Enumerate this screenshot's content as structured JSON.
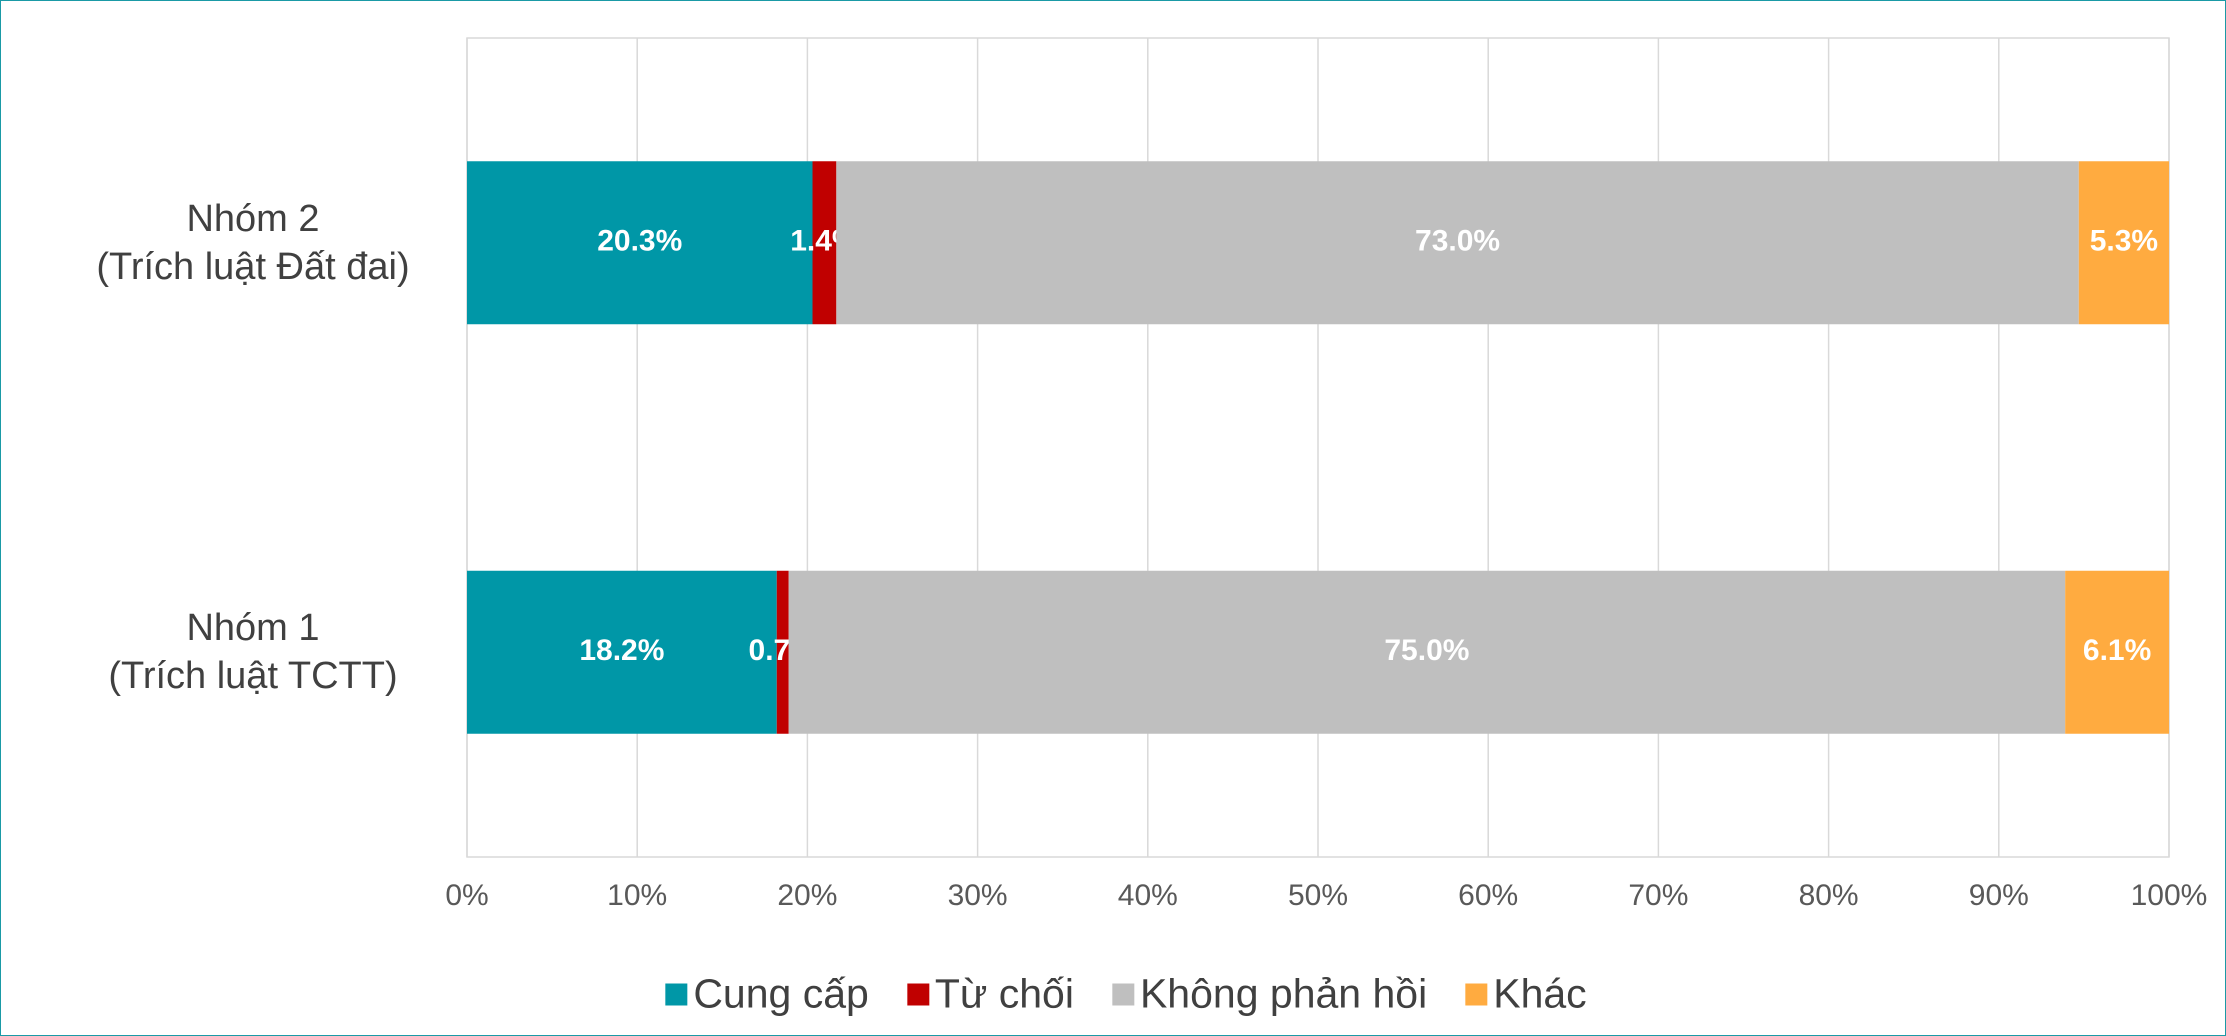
{
  "chart_data": {
    "type": "stacked_barh",
    "categories": [
      "Nhóm 2\n(Trích luật Đất đai)",
      "Nhóm 1\n(Trích luật TCTT)"
    ],
    "series": [
      {
        "name": "Cung cấp",
        "color": "#0097a7",
        "values": [
          20.3,
          18.2
        ],
        "value_labels": [
          "20.3%",
          "18.2%"
        ]
      },
      {
        "name": "Từ chối",
        "color": "#c00000",
        "values": [
          1.4,
          0.7
        ],
        "value_labels": [
          "1.4%",
          "0.7%"
        ]
      },
      {
        "name": "Không phản hồi",
        "color": "#bfbfbf",
        "values": [
          73.0,
          75.0
        ],
        "value_labels": [
          "73.0%",
          "75.0%"
        ]
      },
      {
        "name": "Khác",
        "color": "#ffab40",
        "values": [
          5.3,
          6.1
        ],
        "value_labels": [
          "5.3%",
          "6.1%"
        ]
      }
    ],
    "xlim": [
      0,
      100
    ],
    "xticks": [
      {
        "value": 0,
        "label": "0%"
      },
      {
        "value": 10,
        "label": "10%"
      },
      {
        "value": 20,
        "label": "20%"
      },
      {
        "value": 30,
        "label": "30%"
      },
      {
        "value": 40,
        "label": "40%"
      },
      {
        "value": 50,
        "label": "50%"
      },
      {
        "value": 60,
        "label": "60%"
      },
      {
        "value": 70,
        "label": "70%"
      },
      {
        "value": 80,
        "label": "80%"
      },
      {
        "value": 90,
        "label": "90%"
      },
      {
        "value": 100,
        "label": "100%"
      }
    ],
    "grid": true,
    "legend": "bottom"
  }
}
